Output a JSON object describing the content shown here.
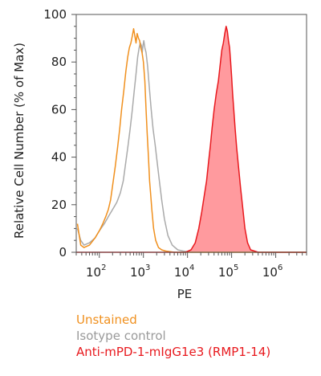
{
  "chart_data": {
    "type": "area",
    "xlabel": "PE",
    "ylabel": "Relative Cell Number (% of Max)",
    "xscale": "log",
    "xlim": [
      30,
      5000000
    ],
    "ylim": [
      0,
      100
    ],
    "y_ticks": [
      "0",
      "20",
      "40",
      "60",
      "80",
      "100"
    ],
    "x_ticks": [
      {
        "base": "10",
        "exp": "2"
      },
      {
        "base": "10",
        "exp": "3"
      },
      {
        "base": "10",
        "exp": "4"
      },
      {
        "base": "10",
        "exp": "5"
      },
      {
        "base": "10",
        "exp": "6"
      }
    ],
    "grid": false,
    "legend_position": "below",
    "series": [
      {
        "name": "Unstained",
        "color": "#f0901e",
        "fill": false,
        "points": [
          [
            32,
            12
          ],
          [
            38,
            3
          ],
          [
            45,
            2
          ],
          [
            60,
            3
          ],
          [
            80,
            6
          ],
          [
            100,
            9
          ],
          [
            120,
            12
          ],
          [
            140,
            15
          ],
          [
            160,
            18
          ],
          [
            180,
            22
          ],
          [
            200,
            28
          ],
          [
            230,
            36
          ],
          [
            260,
            44
          ],
          [
            290,
            52
          ],
          [
            320,
            60
          ],
          [
            360,
            68
          ],
          [
            400,
            76
          ],
          [
            440,
            82
          ],
          [
            480,
            86
          ],
          [
            520,
            88
          ],
          [
            560,
            91
          ],
          [
            600,
            94
          ],
          [
            640,
            91
          ],
          [
            680,
            88
          ],
          [
            720,
            92
          ],
          [
            770,
            90
          ],
          [
            820,
            89
          ],
          [
            870,
            86
          ],
          [
            930,
            84
          ],
          [
            1000,
            80
          ],
          [
            1080,
            72
          ],
          [
            1150,
            60
          ],
          [
            1220,
            50
          ],
          [
            1300,
            40
          ],
          [
            1380,
            30
          ],
          [
            1450,
            25
          ],
          [
            1550,
            18
          ],
          [
            1700,
            10
          ],
          [
            1900,
            5
          ],
          [
            2200,
            2
          ],
          [
            2600,
            1
          ],
          [
            3200,
            0.5
          ],
          [
            5000,
            0
          ],
          [
            5000000,
            0
          ]
        ]
      },
      {
        "name": "Isotype control",
        "color": "#aaaaaa",
        "fill": false,
        "points": [
          [
            32,
            10
          ],
          [
            38,
            5
          ],
          [
            45,
            3
          ],
          [
            60,
            4
          ],
          [
            80,
            6
          ],
          [
            100,
            9
          ],
          [
            130,
            12
          ],
          [
            160,
            15
          ],
          [
            200,
            18
          ],
          [
            250,
            21
          ],
          [
            300,
            25
          ],
          [
            350,
            30
          ],
          [
            400,
            38
          ],
          [
            450,
            45
          ],
          [
            500,
            52
          ],
          [
            560,
            60
          ],
          [
            620,
            68
          ],
          [
            680,
            75
          ],
          [
            740,
            82
          ],
          [
            800,
            86
          ],
          [
            850,
            88
          ],
          [
            900,
            87
          ],
          [
            940,
            84
          ],
          [
            980,
            87
          ],
          [
            1020,
            89
          ],
          [
            1080,
            86
          ],
          [
            1150,
            84
          ],
          [
            1250,
            78
          ],
          [
            1350,
            70
          ],
          [
            1500,
            60
          ],
          [
            1650,
            52
          ],
          [
            1850,
            45
          ],
          [
            2050,
            38
          ],
          [
            2300,
            30
          ],
          [
            2600,
            22
          ],
          [
            3000,
            14
          ],
          [
            3600,
            7
          ],
          [
            4500,
            3
          ],
          [
            6000,
            1
          ],
          [
            8000,
            0.5
          ],
          [
            12000,
            0
          ],
          [
            5000000,
            0
          ]
        ]
      },
      {
        "name": "Anti-mPD-1-mIgG1e3 (RMP1-14)",
        "color": "#e8191e",
        "fill": true,
        "fill_color": "#ff9a9e",
        "points": [
          [
            30,
            0
          ],
          [
            9000,
            0
          ],
          [
            12000,
            1
          ],
          [
            15000,
            4
          ],
          [
            18000,
            10
          ],
          [
            21000,
            17
          ],
          [
            24000,
            24
          ],
          [
            27000,
            30
          ],
          [
            30000,
            38
          ],
          [
            33000,
            45
          ],
          [
            36000,
            52
          ],
          [
            40000,
            60
          ],
          [
            45000,
            67
          ],
          [
            50000,
            72
          ],
          [
            55000,
            79
          ],
          [
            60000,
            85
          ],
          [
            65000,
            88
          ],
          [
            70000,
            92
          ],
          [
            75000,
            95
          ],
          [
            80000,
            93
          ],
          [
            85000,
            89
          ],
          [
            90000,
            86
          ],
          [
            95000,
            80
          ],
          [
            100000,
            74
          ],
          [
            105000,
            67
          ],
          [
            112000,
            60
          ],
          [
            120000,
            52
          ],
          [
            130000,
            44
          ],
          [
            145000,
            35
          ],
          [
            160000,
            27
          ],
          [
            180000,
            18
          ],
          [
            200000,
            10
          ],
          [
            230000,
            4
          ],
          [
            270000,
            1
          ],
          [
            330000,
            0.5
          ],
          [
            400000,
            0
          ],
          [
            5000000,
            0
          ]
        ]
      }
    ]
  }
}
